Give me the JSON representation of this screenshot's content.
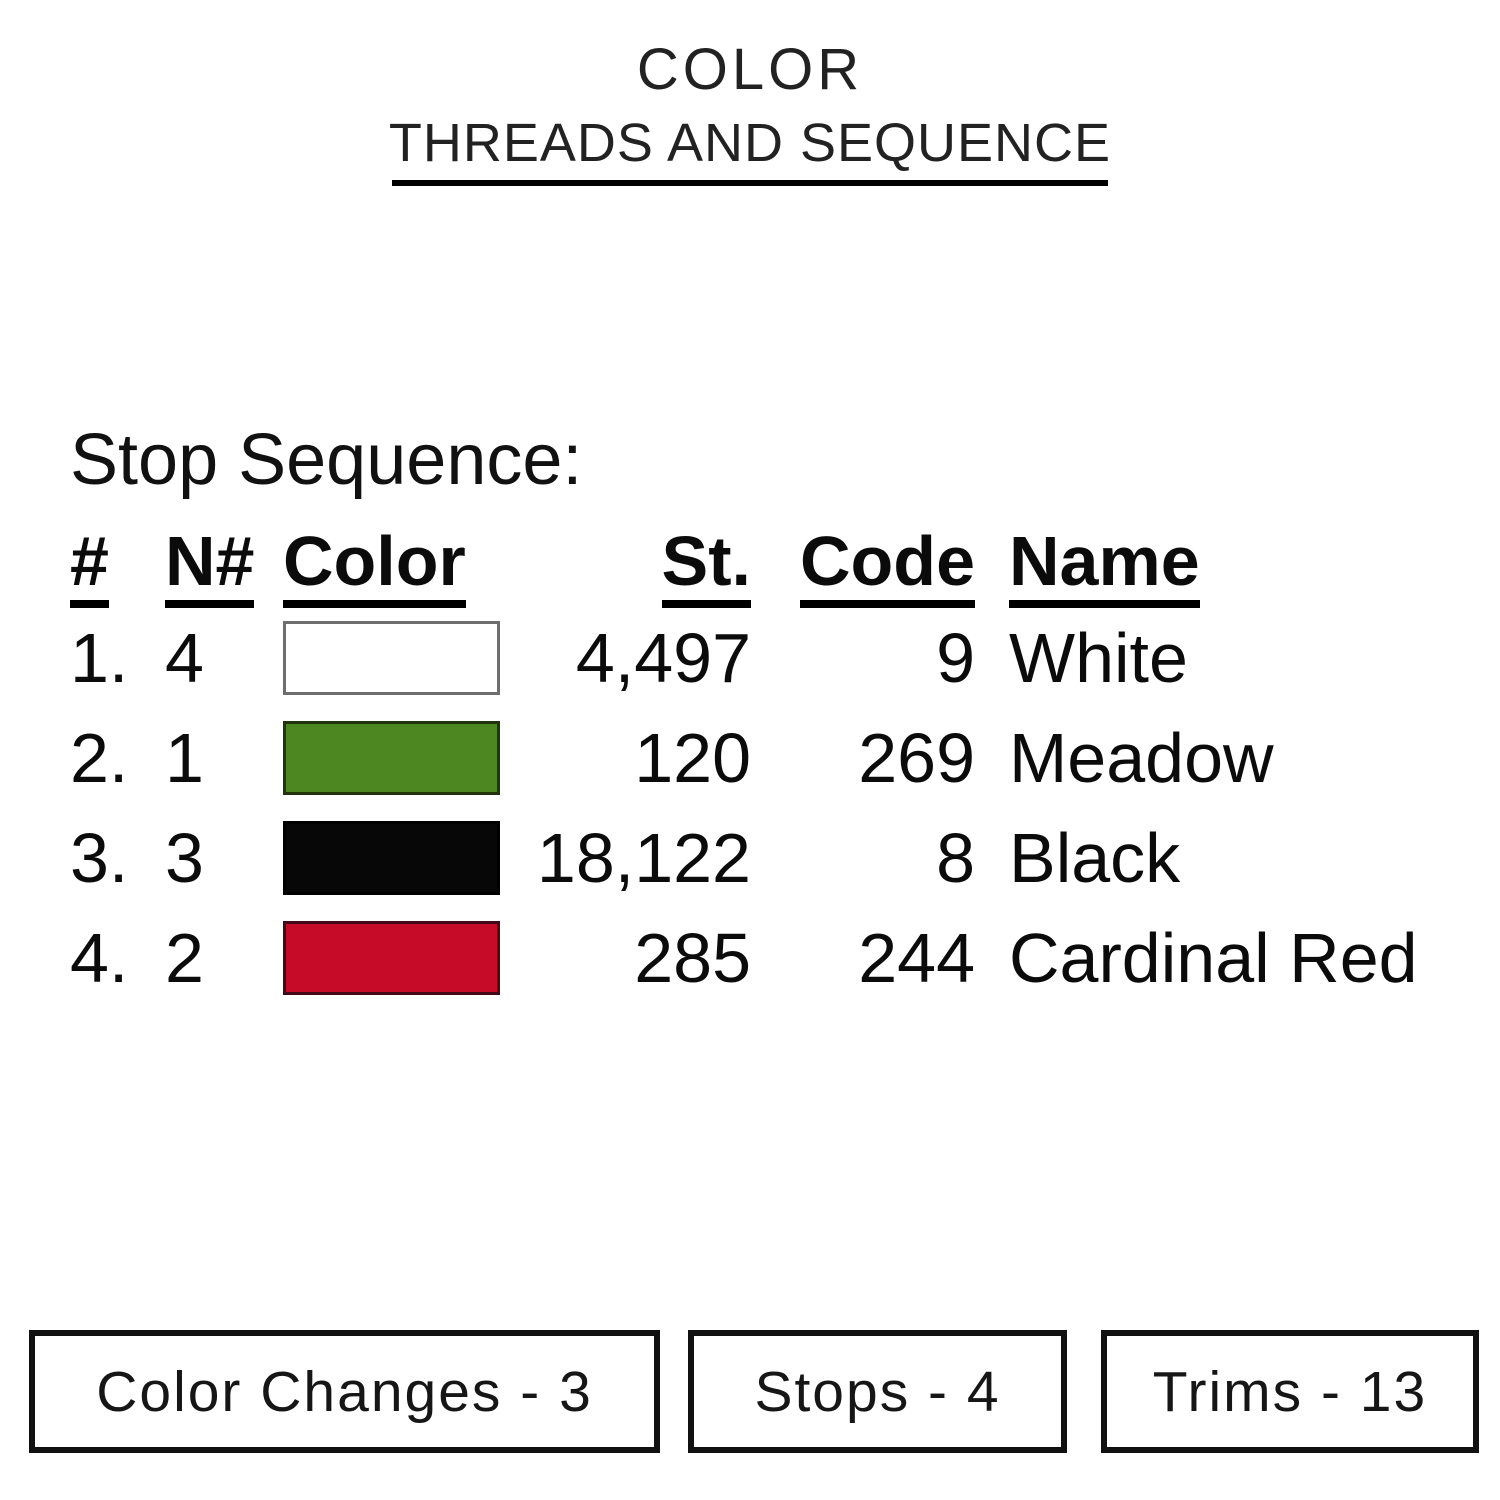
{
  "header": {
    "title": "COLOR",
    "subtitle": "THREADS AND SEQUENCE"
  },
  "stop_sequence": {
    "heading": "Stop Sequence:",
    "columns": {
      "number": "#",
      "needle": "N#",
      "color": "Color",
      "stitches": "St.",
      "code": "Code",
      "name": "Name"
    },
    "rows": [
      {
        "index": "1.",
        "needle": "4",
        "swatch_fill": "#ffffff",
        "swatch_border": "#6e6e6e",
        "stitches": "4,497",
        "code": "9",
        "name": "White"
      },
      {
        "index": "2.",
        "needle": "1",
        "swatch_fill": "#4c8721",
        "swatch_border": "#22330e",
        "stitches": "120",
        "code": "269",
        "name": "Meadow"
      },
      {
        "index": "3.",
        "needle": "3",
        "swatch_fill": "#070707",
        "swatch_border": "#000000",
        "stitches": "18,122",
        "code": "8",
        "name": "Black"
      },
      {
        "index": "4.",
        "needle": "2",
        "swatch_fill": "#c50b27",
        "swatch_border": "#43081a",
        "stitches": "285",
        "code": "244",
        "name": "Cardinal Red"
      }
    ]
  },
  "summary": {
    "color_changes": "Color Changes - 3",
    "stops": "Stops - 4",
    "trims": "Trims - 13"
  },
  "colors": {
    "text": "#1c1c1c",
    "rule": "#000000",
    "box_border": "#111111"
  }
}
